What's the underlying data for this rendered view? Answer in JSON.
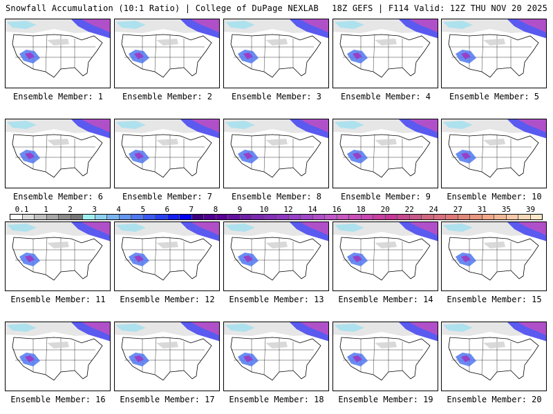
{
  "header": {
    "left": "Snowfall Accumulation (10:1 Ratio) | College of DuPage NEXLAB",
    "right": "18Z GEFS | F114 Valid: 12Z THU NOV 20 2025"
  },
  "members": [
    "Ensemble Member: 1",
    "Ensemble Member: 2",
    "Ensemble Member: 3",
    "Ensemble Member: 4",
    "Ensemble Member: 5",
    "Ensemble Member: 6",
    "Ensemble Member: 7",
    "Ensemble Member: 8",
    "Ensemble Member: 9",
    "Ensemble Member: 10",
    "Ensemble Member: 11",
    "Ensemble Member: 12",
    "Ensemble Member: 13",
    "Ensemble Member: 14",
    "Ensemble Member: 15",
    "Ensemble Member: 16",
    "Ensemble Member: 17",
    "Ensemble Member: 18",
    "Ensemble Member: 19",
    "Ensemble Member: 20"
  ],
  "colorbar": {
    "labels": [
      "0.1",
      "1",
      "2",
      "3",
      "4",
      "5",
      "6",
      "7",
      "8",
      "9",
      "10",
      "12",
      "14",
      "16",
      "18",
      "20",
      "22",
      "24",
      "27",
      "31",
      "35",
      "39"
    ],
    "colors": [
      "#ffffff",
      "#dcdcdc",
      "#c0c0c0",
      "#a8a8a8",
      "#8c8c8c",
      "#787878",
      "#a0f0f0",
      "#8ed0f0",
      "#78b4f0",
      "#6496f0",
      "#5078f0",
      "#3c5af0",
      "#2840f0",
      "#1420f0",
      "#0000f0",
      "#3c0080",
      "#500090",
      "#5a0098",
      "#6410a0",
      "#7020a8",
      "#7a28b0",
      "#8430b8",
      "#8e38c0",
      "#9840c8",
      "#a048c8",
      "#b050c8",
      "#c058c8",
      "#c858c0",
      "#c850b8",
      "#c848b0",
      "#c840a0",
      "#c83898",
      "#c84890",
      "#c85888",
      "#d06880",
      "#d87080",
      "#e07878",
      "#e08878",
      "#e89880",
      "#f0a888",
      "#f0b898",
      "#f8c8a8",
      "#f8d8b8",
      "#fce8c8"
    ]
  }
}
